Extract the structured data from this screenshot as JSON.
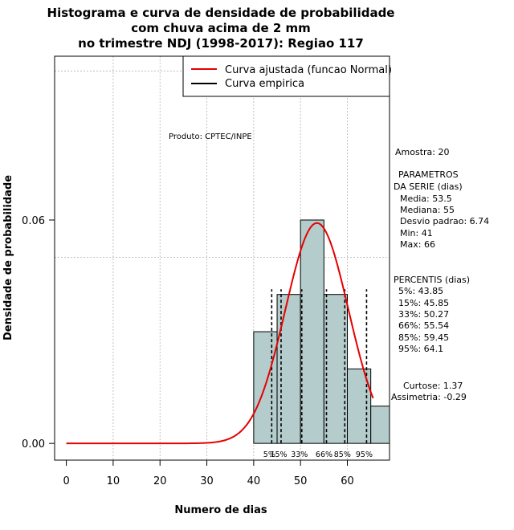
{
  "chart_data": {
    "type": "bar",
    "title_lines": [
      "Histograma e curva de densidade de probabilidade",
      "com chuva acima de 2 mm",
      "no trimestre NDJ (1998-2017): Regiao 117"
    ],
    "xlabel": "Numero de dias",
    "ylabel": "Densidade de probabilidade",
    "xlim": [
      -2.5,
      69
    ],
    "ylim": [
      -0.0045,
      0.104
    ],
    "x_ticks": [
      0,
      10,
      20,
      30,
      40,
      50,
      60
    ],
    "y_ticks": [
      0.0,
      0.06
    ],
    "y_tick_labels": [
      "0.00",
      "0.06"
    ],
    "grid_x": [
      10,
      20,
      30,
      40,
      50,
      60
    ],
    "grid_y": [
      0.05,
      0.1
    ],
    "bins": [
      {
        "x0": 40,
        "x1": 45,
        "density": 0.03
      },
      {
        "x0": 45,
        "x1": 50,
        "density": 0.04
      },
      {
        "x0": 50,
        "x1": 55,
        "density": 0.06
      },
      {
        "x0": 55,
        "x1": 60,
        "density": 0.04
      },
      {
        "x0": 60,
        "x1": 65,
        "density": 0.02
      },
      {
        "x0": 65,
        "x1": 70,
        "density": 0.01
      }
    ],
    "bar_color": "#b4cccc",
    "normal_fit": {
      "mean": 53.5,
      "sd": 6.74,
      "x_range": [
        0,
        65.5
      ],
      "color": "#e60000"
    },
    "legend": {
      "position": "top-right",
      "entries": [
        {
          "label": "Curva ajustada (funcao Normal)",
          "color": "#e60000"
        },
        {
          "label": "Curva empirica",
          "color": "#000000"
        }
      ]
    },
    "percentile_lines": [
      {
        "label": "5%",
        "x": 43.85
      },
      {
        "label": "15%",
        "x": 45.85
      },
      {
        "label": "33%",
        "x": 50.27
      },
      {
        "label": "66%",
        "x": 55.54
      },
      {
        "label": "85%",
        "x": 59.45
      },
      {
        "label": "95%",
        "x": 64.1
      }
    ],
    "annotation": "Produto: CPTEC/INPE"
  },
  "stats": {
    "amostra": "Amostra: 20",
    "params_header": [
      "PARAMETROS",
      "DA SERIE (dias)"
    ],
    "params": [
      "Media: 53.5",
      "Mediana: 55",
      "Desvio padrao: 6.74",
      "Min: 41",
      "Max: 66"
    ],
    "percentis_header": "PERCENTIS (dias)",
    "percentis": [
      "5%: 43.85",
      "15%: 45.85",
      "33%: 50.27",
      "66%: 55.54",
      "85%: 59.45",
      "95%: 64.1"
    ],
    "curtose": "Curtose: 1.37",
    "assimetria": "Assimetria: -0.29"
  }
}
